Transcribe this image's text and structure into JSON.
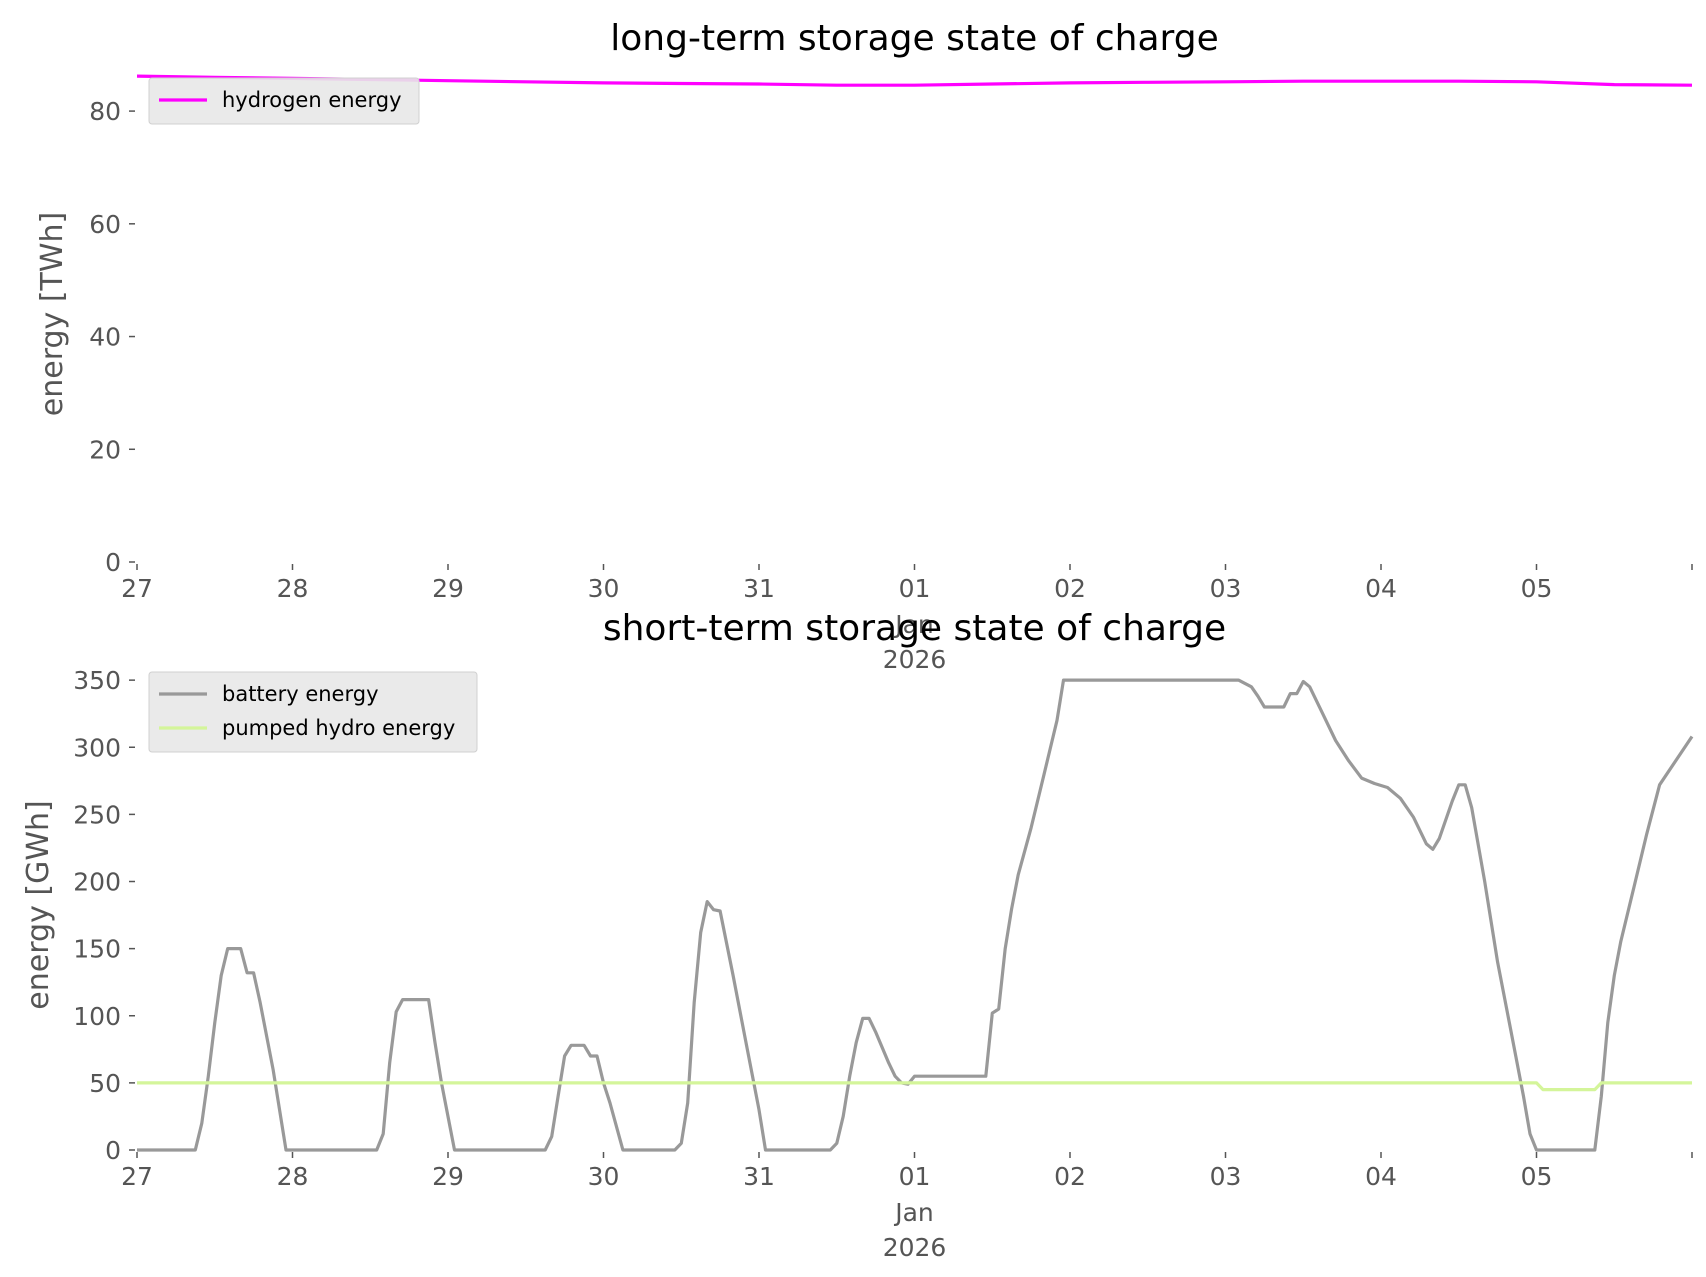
{
  "chart_data": [
    {
      "type": "line",
      "title": "long-term storage state of charge",
      "ylabel": "energy [TWh]",
      "xlabel": "",
      "x_start": "2025-12-27T00:00",
      "x_end": "2026-01-06T00:00",
      "ylim": [
        0,
        88
      ],
      "yticks": [
        0,
        20,
        40,
        60,
        80
      ],
      "xticks": [
        {
          "x": "2025-12-27",
          "label": "27",
          "sub": ""
        },
        {
          "x": "2025-12-28",
          "label": "28",
          "sub": ""
        },
        {
          "x": "2025-12-29",
          "label": "29",
          "sub": ""
        },
        {
          "x": "2025-12-30",
          "label": "30",
          "sub": ""
        },
        {
          "x": "2025-12-31",
          "label": "31",
          "sub": ""
        },
        {
          "x": "2026-01-01",
          "label": "01",
          "sub": "Jan\n2026"
        },
        {
          "x": "2026-01-02",
          "label": "02",
          "sub": ""
        },
        {
          "x": "2026-01-03",
          "label": "03",
          "sub": ""
        },
        {
          "x": "2026-01-04",
          "label": "04",
          "sub": ""
        },
        {
          "x": "2026-01-05",
          "label": "05",
          "sub": ""
        }
      ],
      "grid": false,
      "legend_position": "top-left",
      "series": [
        {
          "name": "hydrogen energy",
          "color": "#ff00ff",
          "points": [
            [
              "2025-12-27T00:00",
              86.2
            ],
            [
              "2025-12-27T12:00",
              86.0
            ],
            [
              "2025-12-28T00:00",
              85.8
            ],
            [
              "2025-12-28T12:00",
              85.6
            ],
            [
              "2025-12-29T00:00",
              85.4
            ],
            [
              "2025-12-29T12:00",
              85.2
            ],
            [
              "2025-12-30T00:00",
              85.0
            ],
            [
              "2025-12-30T12:00",
              84.9
            ],
            [
              "2025-12-31T00:00",
              84.8
            ],
            [
              "2025-12-31T12:00",
              84.6
            ],
            [
              "2026-01-01T00:00",
              84.6
            ],
            [
              "2026-01-01T12:00",
              84.8
            ],
            [
              "2026-01-02T00:00",
              85.0
            ],
            [
              "2026-01-02T12:00",
              85.1
            ],
            [
              "2026-01-03T00:00",
              85.2
            ],
            [
              "2026-01-03T12:00",
              85.3
            ],
            [
              "2026-01-04T00:00",
              85.3
            ],
            [
              "2026-01-04T12:00",
              85.3
            ],
            [
              "2026-01-05T00:00",
              85.2
            ],
            [
              "2026-01-05T12:00",
              84.7
            ],
            [
              "2026-01-06T00:00",
              84.6
            ]
          ]
        }
      ]
    },
    {
      "type": "line",
      "title": "short-term storage state of charge",
      "ylabel": "energy [GWh]",
      "xlabel": "",
      "x_start": "2025-12-27T00:00",
      "x_end": "2026-01-06T00:00",
      "ylim": [
        0,
        365
      ],
      "yticks": [
        0,
        50,
        100,
        150,
        200,
        250,
        300,
        350
      ],
      "xticks": [
        {
          "x": "2025-12-27",
          "label": "27",
          "sub": ""
        },
        {
          "x": "2025-12-28",
          "label": "28",
          "sub": ""
        },
        {
          "x": "2025-12-29",
          "label": "29",
          "sub": ""
        },
        {
          "x": "2025-12-30",
          "label": "30",
          "sub": ""
        },
        {
          "x": "2025-12-31",
          "label": "31",
          "sub": ""
        },
        {
          "x": "2026-01-01",
          "label": "01",
          "sub": "Jan\n2026"
        },
        {
          "x": "2026-01-02",
          "label": "02",
          "sub": ""
        },
        {
          "x": "2026-01-03",
          "label": "03",
          "sub": ""
        },
        {
          "x": "2026-01-04",
          "label": "04",
          "sub": ""
        },
        {
          "x": "2026-01-05",
          "label": "05",
          "sub": ""
        }
      ],
      "grid": false,
      "legend_position": "top-left",
      "series": [
        {
          "name": "battery energy",
          "color": "#999999",
          "points": [
            [
              "2025-12-27T00:00",
              0
            ],
            [
              "2025-12-27T09:00",
              0
            ],
            [
              "2025-12-27T10:00",
              20
            ],
            [
              "2025-12-27T11:00",
              55
            ],
            [
              "2025-12-27T12:00",
              95
            ],
            [
              "2025-12-27T13:00",
              130
            ],
            [
              "2025-12-27T14:00",
              150
            ],
            [
              "2025-12-27T16:00",
              150
            ],
            [
              "2025-12-27T17:00",
              132
            ],
            [
              "2025-12-27T18:00",
              132
            ],
            [
              "2025-12-27T19:00",
              110
            ],
            [
              "2025-12-27T21:00",
              60
            ],
            [
              "2025-12-27T23:00",
              0
            ],
            [
              "2025-12-28T13:00",
              0
            ],
            [
              "2025-12-28T14:00",
              12
            ],
            [
              "2025-12-28T15:00",
              65
            ],
            [
              "2025-12-28T16:00",
              103
            ],
            [
              "2025-12-28T17:00",
              112
            ],
            [
              "2025-12-28T21:00",
              112
            ],
            [
              "2025-12-28T22:00",
              80
            ],
            [
              "2025-12-28T23:00",
              50
            ],
            [
              "2025-12-29T01:00",
              0
            ],
            [
              "2025-12-29T15:00",
              0
            ],
            [
              "2025-12-29T16:00",
              10
            ],
            [
              "2025-12-29T17:00",
              40
            ],
            [
              "2025-12-29T18:00",
              70
            ],
            [
              "2025-12-29T19:00",
              78
            ],
            [
              "2025-12-29T21:00",
              78
            ],
            [
              "2025-12-29T22:00",
              70
            ],
            [
              "2025-12-29T23:00",
              70
            ],
            [
              "2025-12-30T00:00",
              50
            ],
            [
              "2025-12-30T01:00",
              35
            ],
            [
              "2025-12-30T03:00",
              0
            ],
            [
              "2025-12-30T11:00",
              0
            ],
            [
              "2025-12-30T12:00",
              5
            ],
            [
              "2025-12-30T13:00",
              35
            ],
            [
              "2025-12-30T14:00",
              110
            ],
            [
              "2025-12-30T15:00",
              162
            ],
            [
              "2025-12-30T16:00",
              185
            ],
            [
              "2025-12-30T17:00",
              179
            ],
            [
              "2025-12-30T18:00",
              178
            ],
            [
              "2025-12-30T20:00",
              130
            ],
            [
              "2025-12-30T22:00",
              80
            ],
            [
              "2025-12-31T00:00",
              30
            ],
            [
              "2025-12-31T01:00",
              0
            ],
            [
              "2025-12-31T11:00",
              0
            ],
            [
              "2025-12-31T12:00",
              5
            ],
            [
              "2025-12-31T13:00",
              25
            ],
            [
              "2025-12-31T14:00",
              55
            ],
            [
              "2025-12-31T15:00",
              80
            ],
            [
              "2025-12-31T16:00",
              98
            ],
            [
              "2025-12-31T17:00",
              98
            ],
            [
              "2025-12-31T18:00",
              88
            ],
            [
              "2025-12-31T20:00",
              65
            ],
            [
              "2025-12-31T21:00",
              55
            ],
            [
              "2025-12-31T22:00",
              50
            ],
            [
              "2025-12-31T23:00",
              49
            ],
            [
              "2026-01-01T00:00",
              55
            ],
            [
              "2026-01-01T11:00",
              55
            ],
            [
              "2026-01-01T12:00",
              102
            ],
            [
              "2026-01-01T13:00",
              105
            ],
            [
              "2026-01-01T14:00",
              150
            ],
            [
              "2026-01-01T15:00",
              180
            ],
            [
              "2026-01-01T16:00",
              205
            ],
            [
              "2026-01-01T18:00",
              240
            ],
            [
              "2026-01-01T20:00",
              280
            ],
            [
              "2026-01-01T22:00",
              320
            ],
            [
              "2026-01-01T23:00",
              350
            ],
            [
              "2026-01-03T02:00",
              350
            ],
            [
              "2026-01-03T04:00",
              345
            ],
            [
              "2026-01-03T05:00",
              338
            ],
            [
              "2026-01-03T06:00",
              330
            ],
            [
              "2026-01-03T09:00",
              330
            ],
            [
              "2026-01-03T10:00",
              340
            ],
            [
              "2026-01-03T11:00",
              340
            ],
            [
              "2026-01-03T12:00",
              349
            ],
            [
              "2026-01-03T13:00",
              345
            ],
            [
              "2026-01-03T15:00",
              325
            ],
            [
              "2026-01-03T17:00",
              305
            ],
            [
              "2026-01-03T19:00",
              290
            ],
            [
              "2026-01-03T21:00",
              277
            ],
            [
              "2026-01-03T23:00",
              273
            ],
            [
              "2026-01-04T01:00",
              270
            ],
            [
              "2026-01-04T03:00",
              262
            ],
            [
              "2026-01-04T05:00",
              248
            ],
            [
              "2026-01-04T07:00",
              228
            ],
            [
              "2026-01-04T08:00",
              224
            ],
            [
              "2026-01-04T09:00",
              232
            ],
            [
              "2026-01-04T11:00",
              260
            ],
            [
              "2026-01-04T12:00",
              272
            ],
            [
              "2026-01-04T13:00",
              272
            ],
            [
              "2026-01-04T14:00",
              255
            ],
            [
              "2026-01-04T16:00",
              200
            ],
            [
              "2026-01-04T18:00",
              140
            ],
            [
              "2026-01-04T20:00",
              90
            ],
            [
              "2026-01-04T22:00",
              40
            ],
            [
              "2026-01-04T23:00",
              12
            ],
            [
              "2026-01-05T00:00",
              0
            ],
            [
              "2026-01-05T09:00",
              0
            ],
            [
              "2026-01-05T10:00",
              40
            ],
            [
              "2026-01-05T11:00",
              95
            ],
            [
              "2026-01-05T12:00",
              130
            ],
            [
              "2026-01-05T13:00",
              155
            ],
            [
              "2026-01-05T15:00",
              195
            ],
            [
              "2026-01-05T17:00",
              235
            ],
            [
              "2026-01-05T19:00",
              272
            ],
            [
              "2026-01-06T00:00",
              308
            ]
          ]
        },
        {
          "name": "pumped hydro energy",
          "color": "#d4f59a",
          "points": [
            [
              "2025-12-27T00:00",
              50
            ],
            [
              "2026-01-05T00:00",
              50
            ],
            [
              "2026-01-05T01:00",
              45
            ],
            [
              "2026-01-05T09:00",
              45
            ],
            [
              "2026-01-05T10:00",
              50
            ],
            [
              "2026-01-06T00:00",
              50
            ]
          ]
        }
      ]
    }
  ]
}
